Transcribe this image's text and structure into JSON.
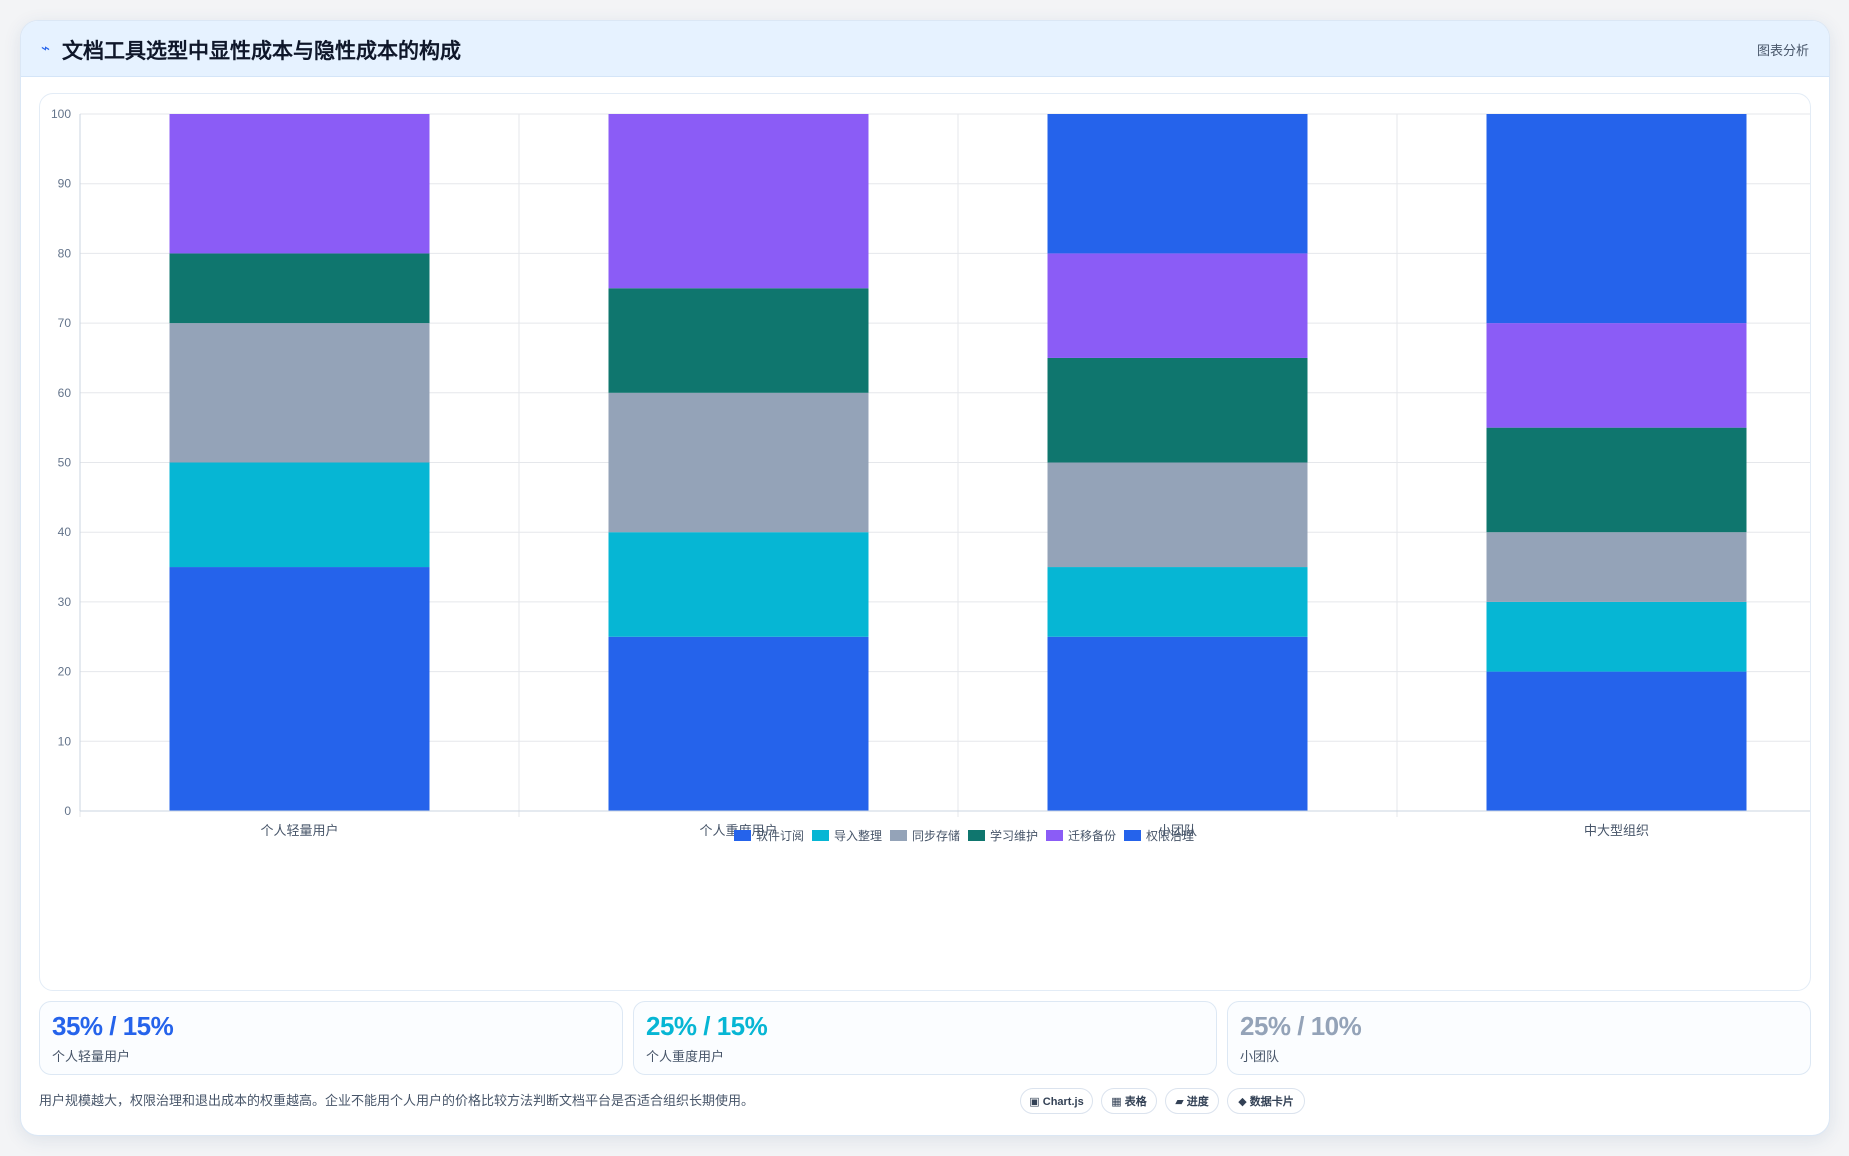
{
  "header": {
    "icon": "⌁",
    "title": "文档工具选型中显性成本与隐性成本的构成",
    "tag": "图表分析"
  },
  "chart_data": {
    "type": "bar",
    "stacked": true,
    "categories": [
      "个人轻量用户",
      "个人重度用户",
      "小团队",
      "中大型组织"
    ],
    "series": [
      {
        "name": "软件订阅",
        "color": "#2563eb",
        "values": [
          35,
          25,
          25,
          20
        ]
      },
      {
        "name": "导入整理",
        "color": "#06b6d4",
        "values": [
          15,
          15,
          10,
          10
        ]
      },
      {
        "name": "同步存储",
        "color": "#94a3b8",
        "values": [
          20,
          20,
          15,
          10
        ]
      },
      {
        "name": "学习维护",
        "color": "#0f766e",
        "values": [
          10,
          15,
          15,
          15
        ]
      },
      {
        "name": "迁移备份",
        "color": "#8b5cf6",
        "values": [
          20,
          25,
          15,
          15
        ]
      },
      {
        "name": "权限治理",
        "color": "#2563eb",
        "values": [
          0,
          0,
          20,
          30
        ]
      }
    ],
    "ylim": [
      0,
      100
    ],
    "yticks": [
      0,
      10,
      20,
      30,
      40,
      50,
      60,
      70,
      80,
      90,
      100
    ],
    "grid": true,
    "legend": "bottom"
  },
  "stats": [
    {
      "value": "35% / 15%",
      "label": "个人轻量用户",
      "color": "#2563eb"
    },
    {
      "value": "25% / 15%",
      "label": "个人重度用户",
      "color": "#06b6d4"
    },
    {
      "value": "25% / 10%",
      "label": "小团队",
      "color": "#94a3b8"
    }
  ],
  "footer": {
    "note": "用户规模越大，权限治理和退出成本的权重越高。企业不能用个人用户的价格比较方法判断文档平台是否适合组织长期使用。",
    "pills": [
      "▣ Chart.js",
      "▦ 表格",
      "▰ 进度",
      "◆ 数据卡片"
    ]
  }
}
